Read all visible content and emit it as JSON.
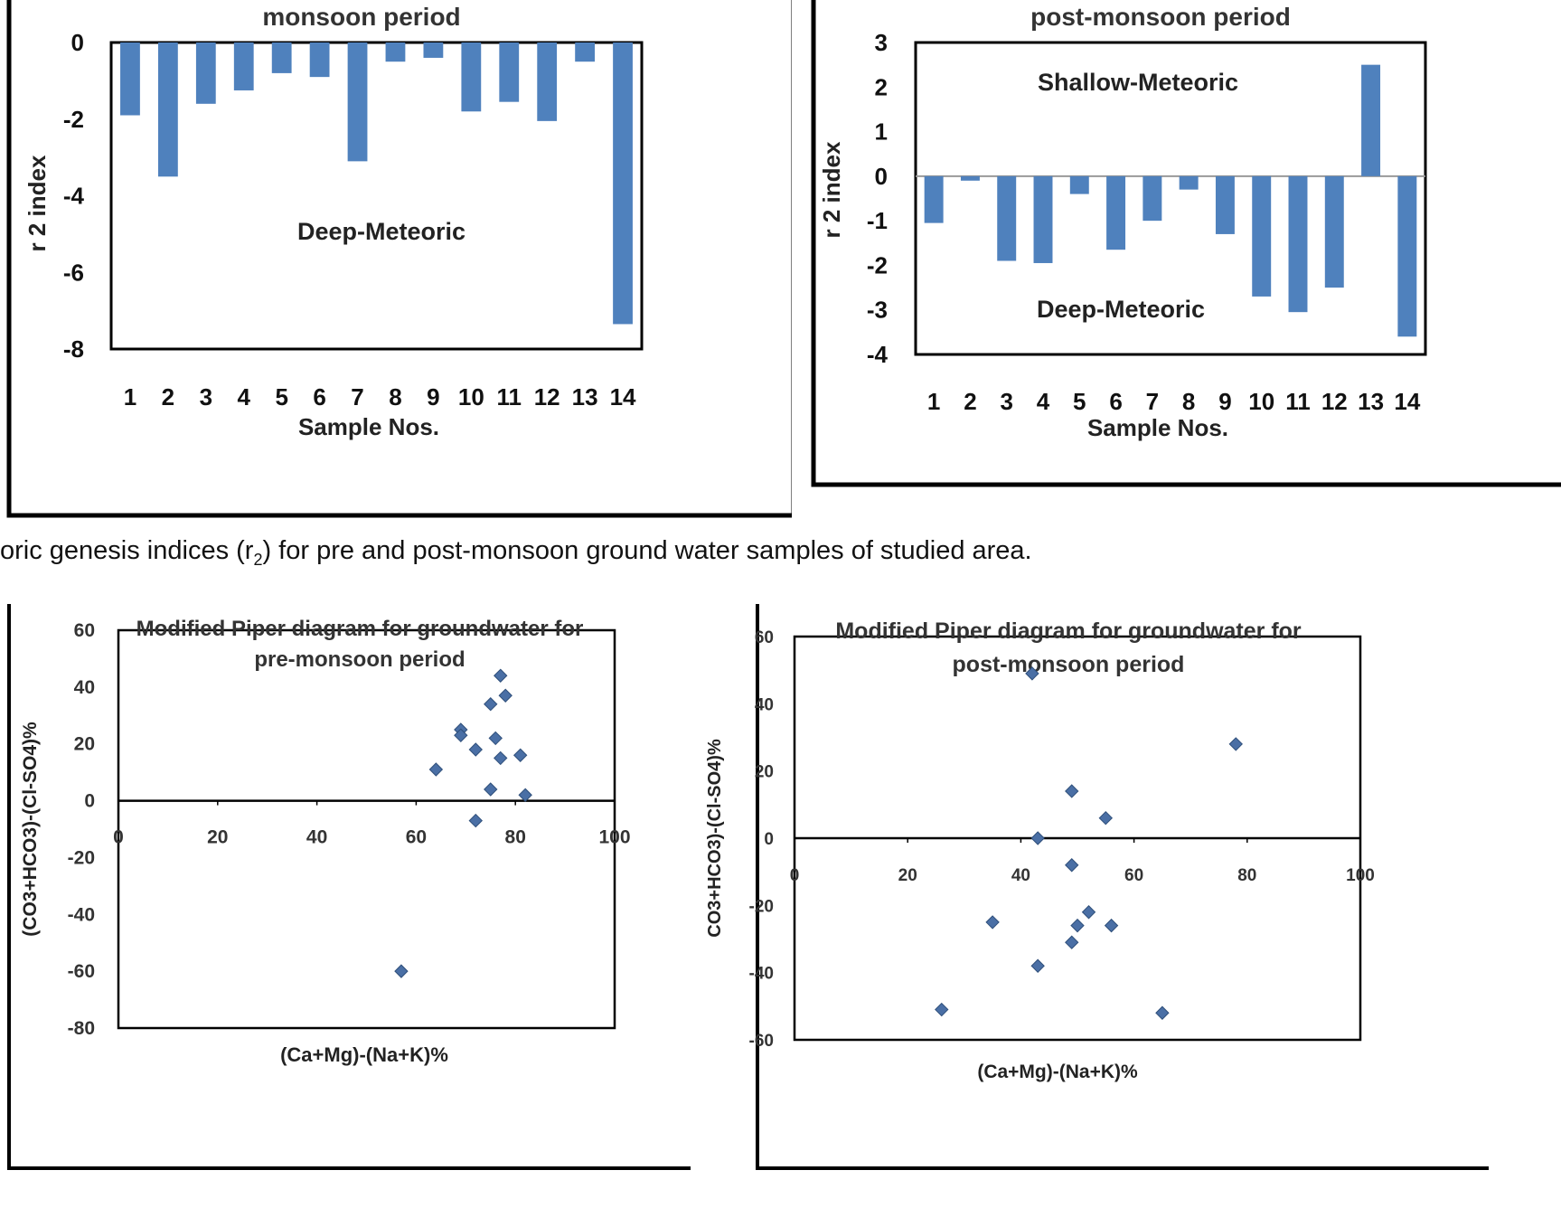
{
  "caption": {
    "before_sub": "oric genesis indices (r",
    "sub": "2",
    "after_sub": ") for pre and post-monsoon ground water samples of studied area."
  },
  "colors": {
    "bar": "#4f81bd",
    "marker": "#4a6fa5",
    "frame": "#000000"
  },
  "chart_data": [
    {
      "type": "bar",
      "title": "monsoon period",
      "xlabel": "Sample Nos.",
      "ylabel": "r 2 index",
      "categories": [
        "1",
        "2",
        "3",
        "4",
        "5",
        "6",
        "7",
        "8",
        "9",
        "10",
        "11",
        "12",
        "13",
        "14"
      ],
      "values": [
        -1.9,
        -3.5,
        -1.6,
        -1.25,
        -0.8,
        -0.9,
        -3.1,
        -0.5,
        -0.4,
        -1.8,
        -1.55,
        -2.05,
        -0.5,
        -7.35
      ],
      "ylim": [
        -8,
        0
      ],
      "yticks": [
        "0",
        "-2",
        "-4",
        "-6",
        "-8"
      ],
      "grid": false,
      "annotations": [
        "Deep-Meteoric"
      ]
    },
    {
      "type": "bar",
      "title": "post-monsoon period",
      "xlabel": "Sample Nos.",
      "ylabel": "r 2 index",
      "categories": [
        "1",
        "2",
        "3",
        "4",
        "5",
        "6",
        "7",
        "8",
        "9",
        "10",
        "11",
        "12",
        "13",
        "14"
      ],
      "values": [
        -1.05,
        -0.1,
        -1.9,
        -1.95,
        -0.4,
        -1.65,
        -1.0,
        -0.3,
        -1.3,
        -2.7,
        -3.05,
        -2.5,
        2.5,
        -3.6
      ],
      "ylim": [
        -4,
        3
      ],
      "yticks": [
        "3",
        "2",
        "1",
        "0",
        "-1",
        "-2",
        "-3",
        "-4"
      ],
      "grid": false,
      "annotations": [
        "Shallow-Meteoric",
        "Deep-Meteoric"
      ]
    },
    {
      "type": "scatter",
      "title": "Modified Piper diagram for groundwater for pre-monsoon period",
      "title_lines": [
        "Modified Piper diagram for groundwater for",
        "pre-monsoon period"
      ],
      "xlabel": "(Ca+Mg)-(Na+K)%",
      "ylabel": "(CO3+HCO3)-(Cl-SO4)%",
      "xlim": [
        0,
        100
      ],
      "ylim": [
        -80,
        60
      ],
      "xticks": [
        "0",
        "20",
        "40",
        "60",
        "80",
        "100"
      ],
      "yticks": [
        "60",
        "40",
        "20",
        "0",
        "-20",
        "-40",
        "-60",
        "-80"
      ],
      "grid": false,
      "series": [
        {
          "x": [
            77,
            78,
            75,
            69,
            69,
            76,
            72,
            77,
            81,
            64,
            75,
            82,
            72,
            57
          ],
          "y": [
            44,
            37,
            34,
            25,
            23,
            22,
            18,
            15,
            16,
            11,
            4,
            2,
            -7,
            -60
          ]
        }
      ]
    },
    {
      "type": "scatter",
      "title": "Modified Piper diagram for groundwater for post-monsoon period",
      "title_lines": [
        "Modified Piper diagram for groundwater for",
        "post-monsoon period"
      ],
      "xlabel": "(Ca+Mg)-(Na+K)%",
      "ylabel": "CO3+HCO3)-(Cl-SO4)%",
      "xlim": [
        0,
        100
      ],
      "ylim": [
        -60,
        60
      ],
      "xticks": [
        "0",
        "20",
        "40",
        "60",
        "80",
        "100"
      ],
      "yticks": [
        "60",
        "40",
        "20",
        "0",
        "-20",
        "-40",
        "-60"
      ],
      "grid": false,
      "series": [
        {
          "x": [
            42,
            78,
            49,
            55,
            43,
            49,
            35,
            52,
            50,
            56,
            49,
            43,
            26,
            65
          ],
          "y": [
            49,
            28,
            14,
            6,
            0,
            -8,
            -25,
            -22,
            -26,
            -26,
            -31,
            -38,
            -51,
            -52
          ]
        }
      ]
    }
  ]
}
